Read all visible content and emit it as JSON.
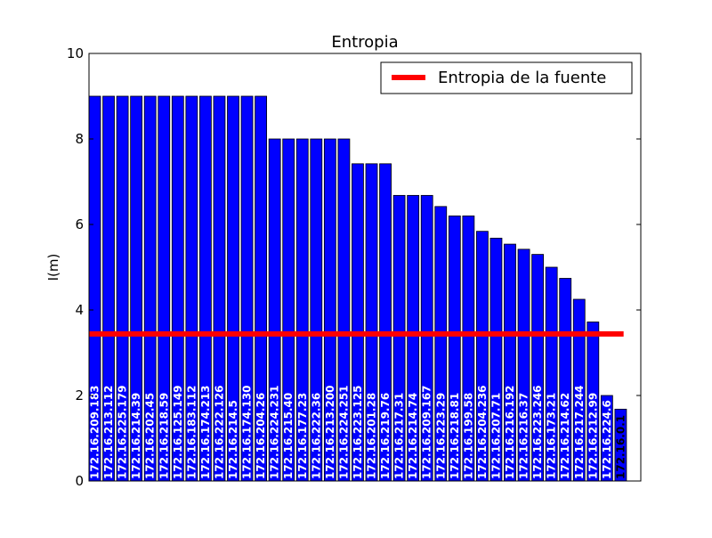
{
  "chart_data": {
    "type": "bar",
    "title": "Entropia",
    "xlabel": "",
    "ylabel": "I(m)",
    "ylim": [
      0,
      10
    ],
    "yticks": [
      0,
      2,
      4,
      6,
      8,
      10
    ],
    "categories": [
      "172.16.209.183",
      "172.16.213.112",
      "172.16.225.179",
      "172.16.214.39",
      "172.16.202.45",
      "172.16.218.59",
      "172.16.125.149",
      "172.16.183.112",
      "172.16.174.213",
      "172.16.222.126",
      "172.16.214.5",
      "172.16.174.130",
      "172.16.204.26",
      "172.16.224.231",
      "172.16.215.40",
      "172.16.177.23",
      "172.16.222.36",
      "172.16.213.200",
      "172.16.224.251",
      "172.16.223.125",
      "172.16.201.28",
      "172.16.219.76",
      "172.16.217.31",
      "172.16.214.74",
      "172.16.209.167",
      "172.16.223.29",
      "172.16.218.81",
      "172.16.199.58",
      "172.16.204.236",
      "172.16.207.71",
      "172.16.216.192",
      "172.16.216.37",
      "172.16.223.246",
      "172.16.173.21",
      "172.16.214.62",
      "172.16.217.244",
      "172.16.212.99",
      "172.16.224.6",
      "172.16.0.1"
    ],
    "series": [
      {
        "name": "",
        "color": "#0000ff",
        "values": [
          9.0,
          9.0,
          9.0,
          9.0,
          9.0,
          9.0,
          9.0,
          9.0,
          9.0,
          9.0,
          9.0,
          9.0,
          9.0,
          8.0,
          8.0,
          8.0,
          8.0,
          8.0,
          8.0,
          7.42,
          7.42,
          7.42,
          6.68,
          6.68,
          6.68,
          6.42,
          6.2,
          6.2,
          5.84,
          5.68,
          5.54,
          5.42,
          5.3,
          5.0,
          4.74,
          4.25,
          3.72,
          2.0,
          1.68
        ]
      }
    ],
    "reference_line": {
      "label": "Entropia de la fuente",
      "value": 3.44,
      "color": "#ff0000"
    },
    "legend": {
      "position": "top-right",
      "entries": [
        "Entropia de la fuente"
      ]
    },
    "grid": false
  }
}
